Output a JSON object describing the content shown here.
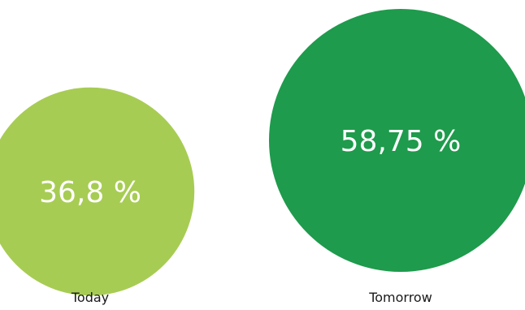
{
  "chart_data": {
    "type": "bubble",
    "categories": [
      "Today",
      "Tomorrow"
    ],
    "values": [
      36.8,
      58.75
    ],
    "value_labels": [
      "36,8 %",
      "58,75 %"
    ],
    "colors": [
      "#a7cc53",
      "#1e9b4c"
    ],
    "unit": "%"
  }
}
